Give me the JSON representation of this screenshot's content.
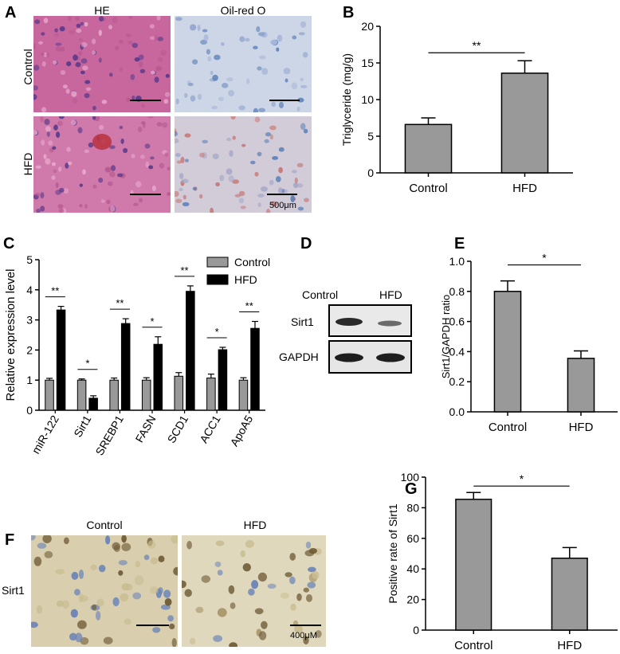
{
  "panels": {
    "A": {
      "letter": "A",
      "col1": "HE",
      "col2": "Oil-red O",
      "row1": "Control",
      "row2": "HFD",
      "scale": "500μm",
      "colors": {
        "he": "#c8679e",
        "he_nuclei": "#5a3a8a",
        "oil_bg": "#cdd6e6",
        "oil_nuclei": "#5b7fb8",
        "oil_red": "#c67a78"
      }
    },
    "D": {
      "letter": "D",
      "col1": "Control",
      "col2": "HFD",
      "row1": "Sirt1",
      "row2": "GAPDH"
    },
    "F": {
      "letter": "F",
      "col1": "Control",
      "col2": "HFD",
      "row": "Sirt1",
      "scale": "400μM",
      "colors": {
        "bg": "#d9cfae",
        "nuclei_blue": "#6a84b8",
        "nuclei_brown": "#6e5a35"
      }
    }
  },
  "chart_data": [
    {
      "id": "B",
      "letter": "B",
      "type": "bar",
      "categories": [
        "Control",
        "HFD"
      ],
      "values": [
        6.6,
        13.6
      ],
      "errors": [
        0.9,
        1.7
      ],
      "ylabel": "Triglyceride (mg/g)",
      "ylim": [
        0,
        20
      ],
      "yticks": [
        0,
        5,
        10,
        15,
        20
      ],
      "significance": "**",
      "bar_color": "#999999"
    },
    {
      "id": "C",
      "letter": "C",
      "type": "bar",
      "categories": [
        "miR-122",
        "Sirt1",
        "SREBP1",
        "FASN",
        "SCD1",
        "ACC1",
        "ApoA5"
      ],
      "series": [
        {
          "name": "Control",
          "values": [
            1.0,
            1.0,
            1.0,
            1.0,
            1.13,
            1.07,
            1.0
          ],
          "errors": [
            0.06,
            0.04,
            0.07,
            0.08,
            0.12,
            0.13,
            0.08
          ],
          "color": "#999999"
        },
        {
          "name": "HFD",
          "values": [
            3.33,
            0.4,
            2.88,
            2.19,
            3.95,
            2.01,
            2.72
          ],
          "errors": [
            0.12,
            0.08,
            0.16,
            0.25,
            0.18,
            0.08,
            0.23
          ],
          "color": "#000000"
        }
      ],
      "significance": [
        "**",
        "*",
        "**",
        "*",
        "**",
        "*",
        "**"
      ],
      "ylabel": "Relative expression level",
      "ylim": [
        0,
        5
      ],
      "yticks": [
        0,
        1,
        2,
        3,
        4,
        5
      ],
      "legend": "top-right"
    },
    {
      "id": "E",
      "letter": "E",
      "type": "bar",
      "categories": [
        "Control",
        "HFD"
      ],
      "values": [
        0.8,
        0.355
      ],
      "errors": [
        0.07,
        0.05
      ],
      "ylabel": "Sirt1/GAPDH ratio",
      "ylim": [
        0,
        1.0
      ],
      "yticks": [
        "0.0",
        "0.2",
        "0.4",
        "0.6",
        "0.8",
        "1.0"
      ],
      "significance": "*",
      "bar_color": "#999999"
    },
    {
      "id": "G",
      "letter": "G",
      "type": "bar",
      "categories": [
        "Control",
        "HFD"
      ],
      "values": [
        85.5,
        47.0
      ],
      "errors": [
        4.5,
        7.0
      ],
      "ylabel": "Positive rate of Sirt1",
      "ylim": [
        0,
        100
      ],
      "yticks": [
        0,
        20,
        40,
        60,
        80,
        100
      ],
      "significance": "*",
      "bar_color": "#999999"
    }
  ]
}
